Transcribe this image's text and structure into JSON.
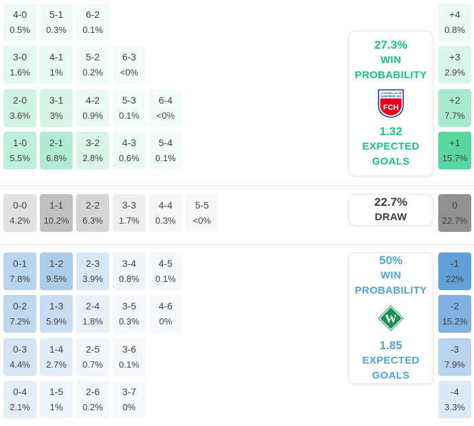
{
  "colors": {
    "home_accent": "#17c280",
    "away_accent": "#55a1d6",
    "draw_accent": "#3b3b3b",
    "cell_text": "#3f3f3f",
    "home_cell_base": "#3ad08e",
    "draw_cell_base": "#919191",
    "away_cell_base": "#64a0d8",
    "fch_red": "#e2001a",
    "fch_blue": "#1a3f8f",
    "werder_green": "#1a9254"
  },
  "chart_data": {
    "type": "heatmap",
    "description_visible_text_only": true,
    "home_win_grid": {
      "rows": [
        [
          {
            "score": "4-0",
            "pct": "0.5%",
            "v": 0.5
          },
          {
            "score": "5-1",
            "pct": "0.3%",
            "v": 0.3
          },
          {
            "score": "6-2",
            "pct": "0.1%",
            "v": 0.1
          }
        ],
        [
          {
            "score": "3-0",
            "pct": "1.6%",
            "v": 1.6
          },
          {
            "score": "4-1",
            "pct": "1%",
            "v": 1
          },
          {
            "score": "5-2",
            "pct": "0.2%",
            "v": 0.2
          },
          {
            "score": "6-3",
            "pct": "<0%",
            "v": 0
          }
        ],
        [
          {
            "score": "2-0",
            "pct": "3.6%",
            "v": 3.6
          },
          {
            "score": "3-1",
            "pct": "3%",
            "v": 3
          },
          {
            "score": "4-2",
            "pct": "0.9%",
            "v": 0.9
          },
          {
            "score": "5-3",
            "pct": "0.1%",
            "v": 0.1
          },
          {
            "score": "6-4",
            "pct": "<0%",
            "v": 0
          }
        ],
        [
          {
            "score": "1-0",
            "pct": "5.5%",
            "v": 5.5
          },
          {
            "score": "2-1",
            "pct": "6.8%",
            "v": 6.8
          },
          {
            "score": "3-2",
            "pct": "2.8%",
            "v": 2.8
          },
          {
            "score": "4-3",
            "pct": "0.6%",
            "v": 0.6
          },
          {
            "score": "5-4",
            "pct": "0.1%",
            "v": 0.1
          }
        ]
      ]
    },
    "draw_grid": {
      "rows": [
        [
          {
            "score": "0-0",
            "pct": "4.2%",
            "v": 4.2
          },
          {
            "score": "1-1",
            "pct": "10.2%",
            "v": 10.2
          },
          {
            "score": "2-2",
            "pct": "6.3%",
            "v": 6.3
          },
          {
            "score": "3-3",
            "pct": "1.7%",
            "v": 1.7
          },
          {
            "score": "4-4",
            "pct": "0.3%",
            "v": 0.3
          },
          {
            "score": "5-5",
            "pct": "<0%",
            "v": 0
          }
        ]
      ]
    },
    "away_win_grid": {
      "rows": [
        [
          {
            "score": "0-1",
            "pct": "7.8%",
            "v": 7.8
          },
          {
            "score": "1-2",
            "pct": "9.5%",
            "v": 9.5
          },
          {
            "score": "2-3",
            "pct": "3.9%",
            "v": 3.9
          },
          {
            "score": "3-4",
            "pct": "0.8%",
            "v": 0.8
          },
          {
            "score": "4-5",
            "pct": "0.1%",
            "v": 0.1
          }
        ],
        [
          {
            "score": "0-2",
            "pct": "7.2%",
            "v": 7.2
          },
          {
            "score": "1-3",
            "pct": "5.9%",
            "v": 5.9
          },
          {
            "score": "2-4",
            "pct": "1.8%",
            "v": 1.8
          },
          {
            "score": "3-5",
            "pct": "0.3%",
            "v": 0.3
          },
          {
            "score": "4-6",
            "pct": "0%",
            "v": 0
          }
        ],
        [
          {
            "score": "0-3",
            "pct": "4.4%",
            "v": 4.4
          },
          {
            "score": "1-4",
            "pct": "2.7%",
            "v": 2.7
          },
          {
            "score": "2-5",
            "pct": "0.7%",
            "v": 0.7
          },
          {
            "score": "3-6",
            "pct": "0.1%",
            "v": 0.1
          }
        ],
        [
          {
            "score": "0-4",
            "pct": "2.1%",
            "v": 2.1
          },
          {
            "score": "1-5",
            "pct": "1%",
            "v": 1
          },
          {
            "score": "2-6",
            "pct": "0.2%",
            "v": 0.2
          },
          {
            "score": "3-7",
            "pct": "0%",
            "v": 0
          }
        ]
      ]
    },
    "goal_difference_column": [
      {
        "diff": "+4",
        "pct": "0.8%",
        "v": 0.8,
        "side": "home"
      },
      {
        "diff": "+3",
        "pct": "2.9%",
        "v": 2.9,
        "side": "home"
      },
      {
        "diff": "+2",
        "pct": "7.7%",
        "v": 7.7,
        "side": "home"
      },
      {
        "diff": "+1",
        "pct": "15.7%",
        "v": 15.7,
        "side": "home"
      },
      {
        "diff": "0",
        "pct": "22.7%",
        "v": 22.7,
        "side": "draw"
      },
      {
        "diff": "-1",
        "pct": "22%",
        "v": 22,
        "side": "away"
      },
      {
        "diff": "-2",
        "pct": "15.2%",
        "v": 15.2,
        "side": "away"
      },
      {
        "diff": "-3",
        "pct": "7.9%",
        "v": 7.9,
        "side": "away"
      },
      {
        "diff": "-4",
        "pct": "3.3%",
        "v": 3.3,
        "side": "away"
      }
    ],
    "panels": {
      "home": {
        "win_pct": "27.3%",
        "win_label_1": "WIN",
        "win_label_2": "PROBABILITY",
        "crest_line_1": "1.FUSSBALLCLUB",
        "crest_line_2": "HEIDENHEIM 1846",
        "team_abbr": "FCH",
        "xg": "1.32",
        "xg_label_1": "EXPECTED",
        "xg_label_2": "GOALS"
      },
      "draw": {
        "pct": "22.7%",
        "label": "DRAW"
      },
      "away": {
        "win_pct": "50%",
        "win_label_1": "WIN",
        "win_label_2": "PROBABILITY",
        "team_abbr": "W",
        "xg": "1.85",
        "xg_label_1": "EXPECTED",
        "xg_label_2": "GOALS"
      }
    }
  }
}
